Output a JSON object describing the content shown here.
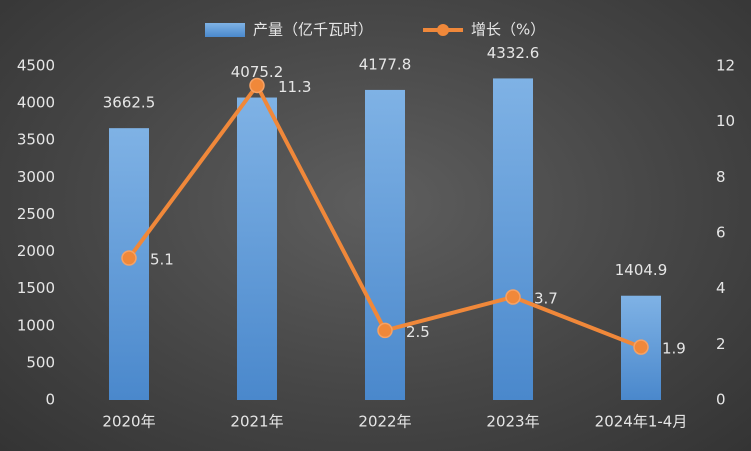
{
  "chart_data": {
    "type": "combo",
    "categories": [
      "2020年",
      "2021年",
      "2022年",
      "2023年",
      "2024年1-4月"
    ],
    "series": [
      {
        "name": "产量（亿千瓦时）",
        "type": "bar",
        "color": "#5b9bd5",
        "values": [
          3662.5,
          4075.2,
          4177.8,
          4332.6,
          1404.9
        ]
      },
      {
        "name": "增长（%）",
        "type": "line",
        "axis": "y2",
        "color": "#f0883a",
        "values": [
          5.1,
          11.3,
          2.5,
          3.7,
          1.9
        ]
      }
    ],
    "ylim": [
      0,
      4500
    ],
    "yticks": [
      0,
      500,
      1000,
      1500,
      2000,
      2500,
      3000,
      3500,
      4000,
      4500
    ],
    "y2lim": [
      0,
      12
    ],
    "y2ticks": [
      0,
      2,
      4,
      6,
      8,
      10,
      12
    ],
    "legend": "top"
  }
}
